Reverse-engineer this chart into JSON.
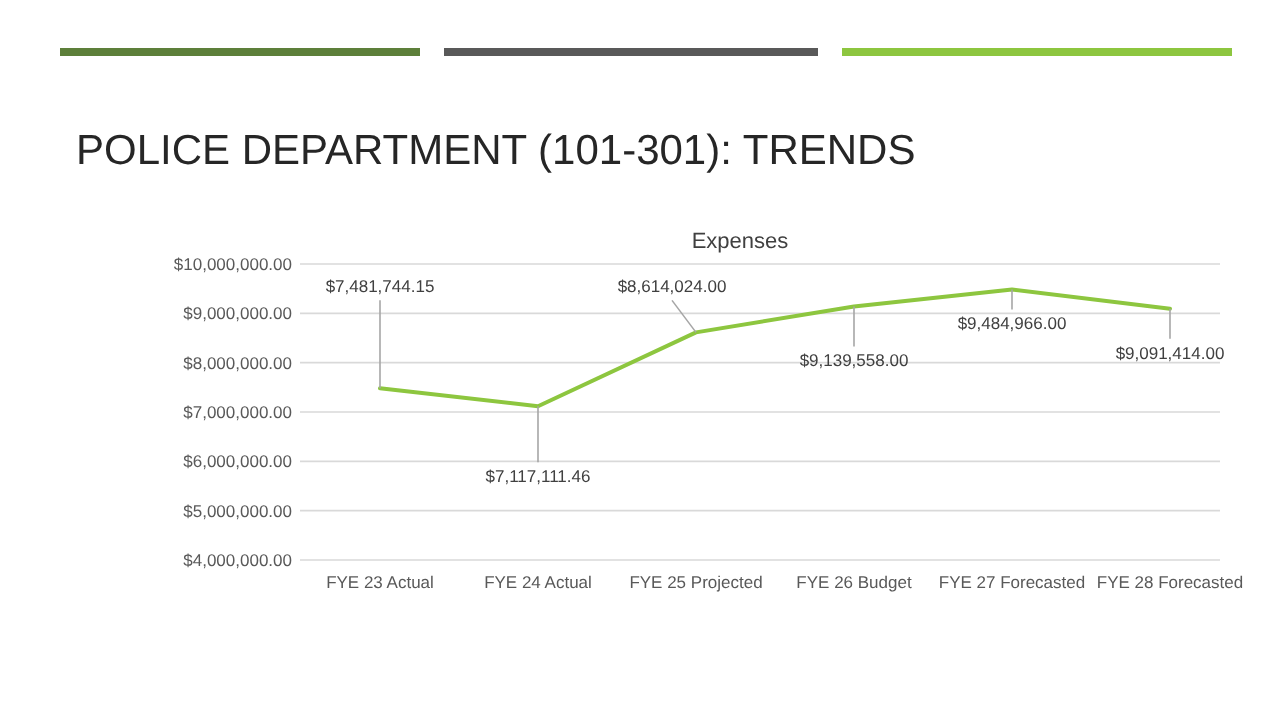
{
  "chart_data": {
    "type": "line",
    "title": "POLICE DEPARTMENT (101-301): TRENDS",
    "subtitle": "Expenses",
    "categories": [
      "FYE 23 Actual",
      "FYE 24 Actual",
      "FYE 25 Projected",
      "FYE 26 Budget",
      "FYE 27 Forecasted",
      "FYE 28 Forecasted"
    ],
    "series": [
      {
        "color": "#8dc63f",
        "values": [
          7481744.15,
          7117111.46,
          8614024.0,
          9139558.0,
          9484966.0,
          9091414.0
        ],
        "value_labels": [
          "$7,481,744.15",
          "$7,117,111.46",
          "$8,614,024.00",
          "$9,139,558.00",
          "$9,484,966.00",
          "$9,091,414.00"
        ]
      }
    ],
    "ylim": [
      4000000,
      10000000
    ],
    "yticks": [
      {
        "value": 4000000,
        "label": "$4,000,000.00"
      },
      {
        "value": 5000000,
        "label": "$5,000,000.00"
      },
      {
        "value": 6000000,
        "label": "$6,000,000.00"
      },
      {
        "value": 7000000,
        "label": "$7,000,000.00"
      },
      {
        "value": 8000000,
        "label": "$8,000,000.00"
      },
      {
        "value": 9000000,
        "label": "$9,000,000.00"
      },
      {
        "value": 10000000,
        "label": "$10,000,000.00"
      }
    ],
    "grid": "y",
    "marker": "none",
    "line_style": "solid"
  }
}
